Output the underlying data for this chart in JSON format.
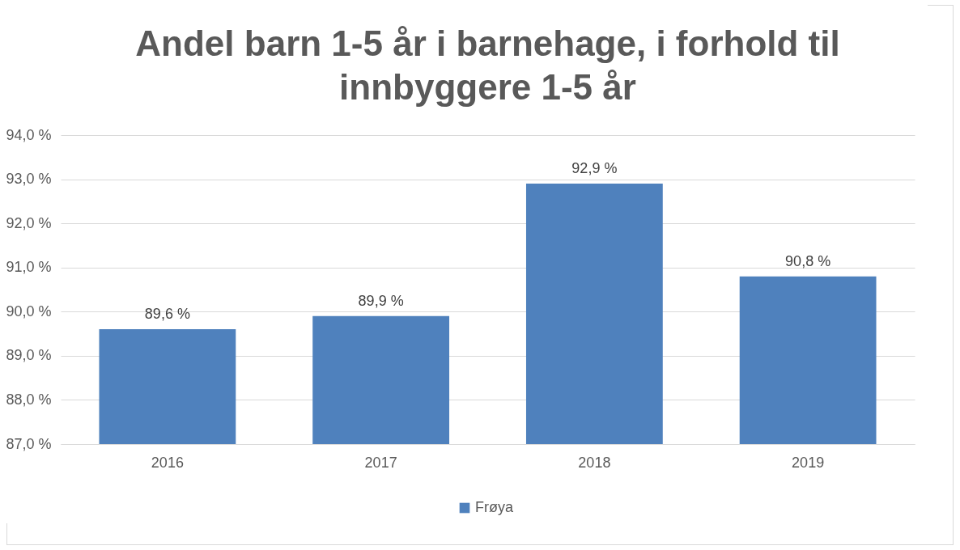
{
  "chart_data": {
    "type": "bar",
    "title": "Andel barn 1-5 år i barnehage, i forhold til innbyggere 1-5 år",
    "categories": [
      "2016",
      "2017",
      "2018",
      "2019"
    ],
    "series": [
      {
        "name": "Frøya",
        "color": "#4f81bd",
        "values": [
          89.6,
          89.9,
          92.9,
          90.8
        ],
        "value_labels": [
          "89,6 %",
          "89,9 %",
          "92,9 %",
          "90,8 %"
        ]
      }
    ],
    "ylim": [
      87,
      94
    ],
    "yticks": [
      {
        "value": 87,
        "label": "87,0 %"
      },
      {
        "value": 88,
        "label": "88,0 %"
      },
      {
        "value": 89,
        "label": "89,0 %"
      },
      {
        "value": 90,
        "label": "90,0 %"
      },
      {
        "value": 91,
        "label": "91,0 %"
      },
      {
        "value": 92,
        "label": "92,0 %"
      },
      {
        "value": 93,
        "label": "93,0 %"
      },
      {
        "value": 94,
        "label": "94,0 %"
      }
    ],
    "grid": true,
    "legend": "bottom"
  }
}
